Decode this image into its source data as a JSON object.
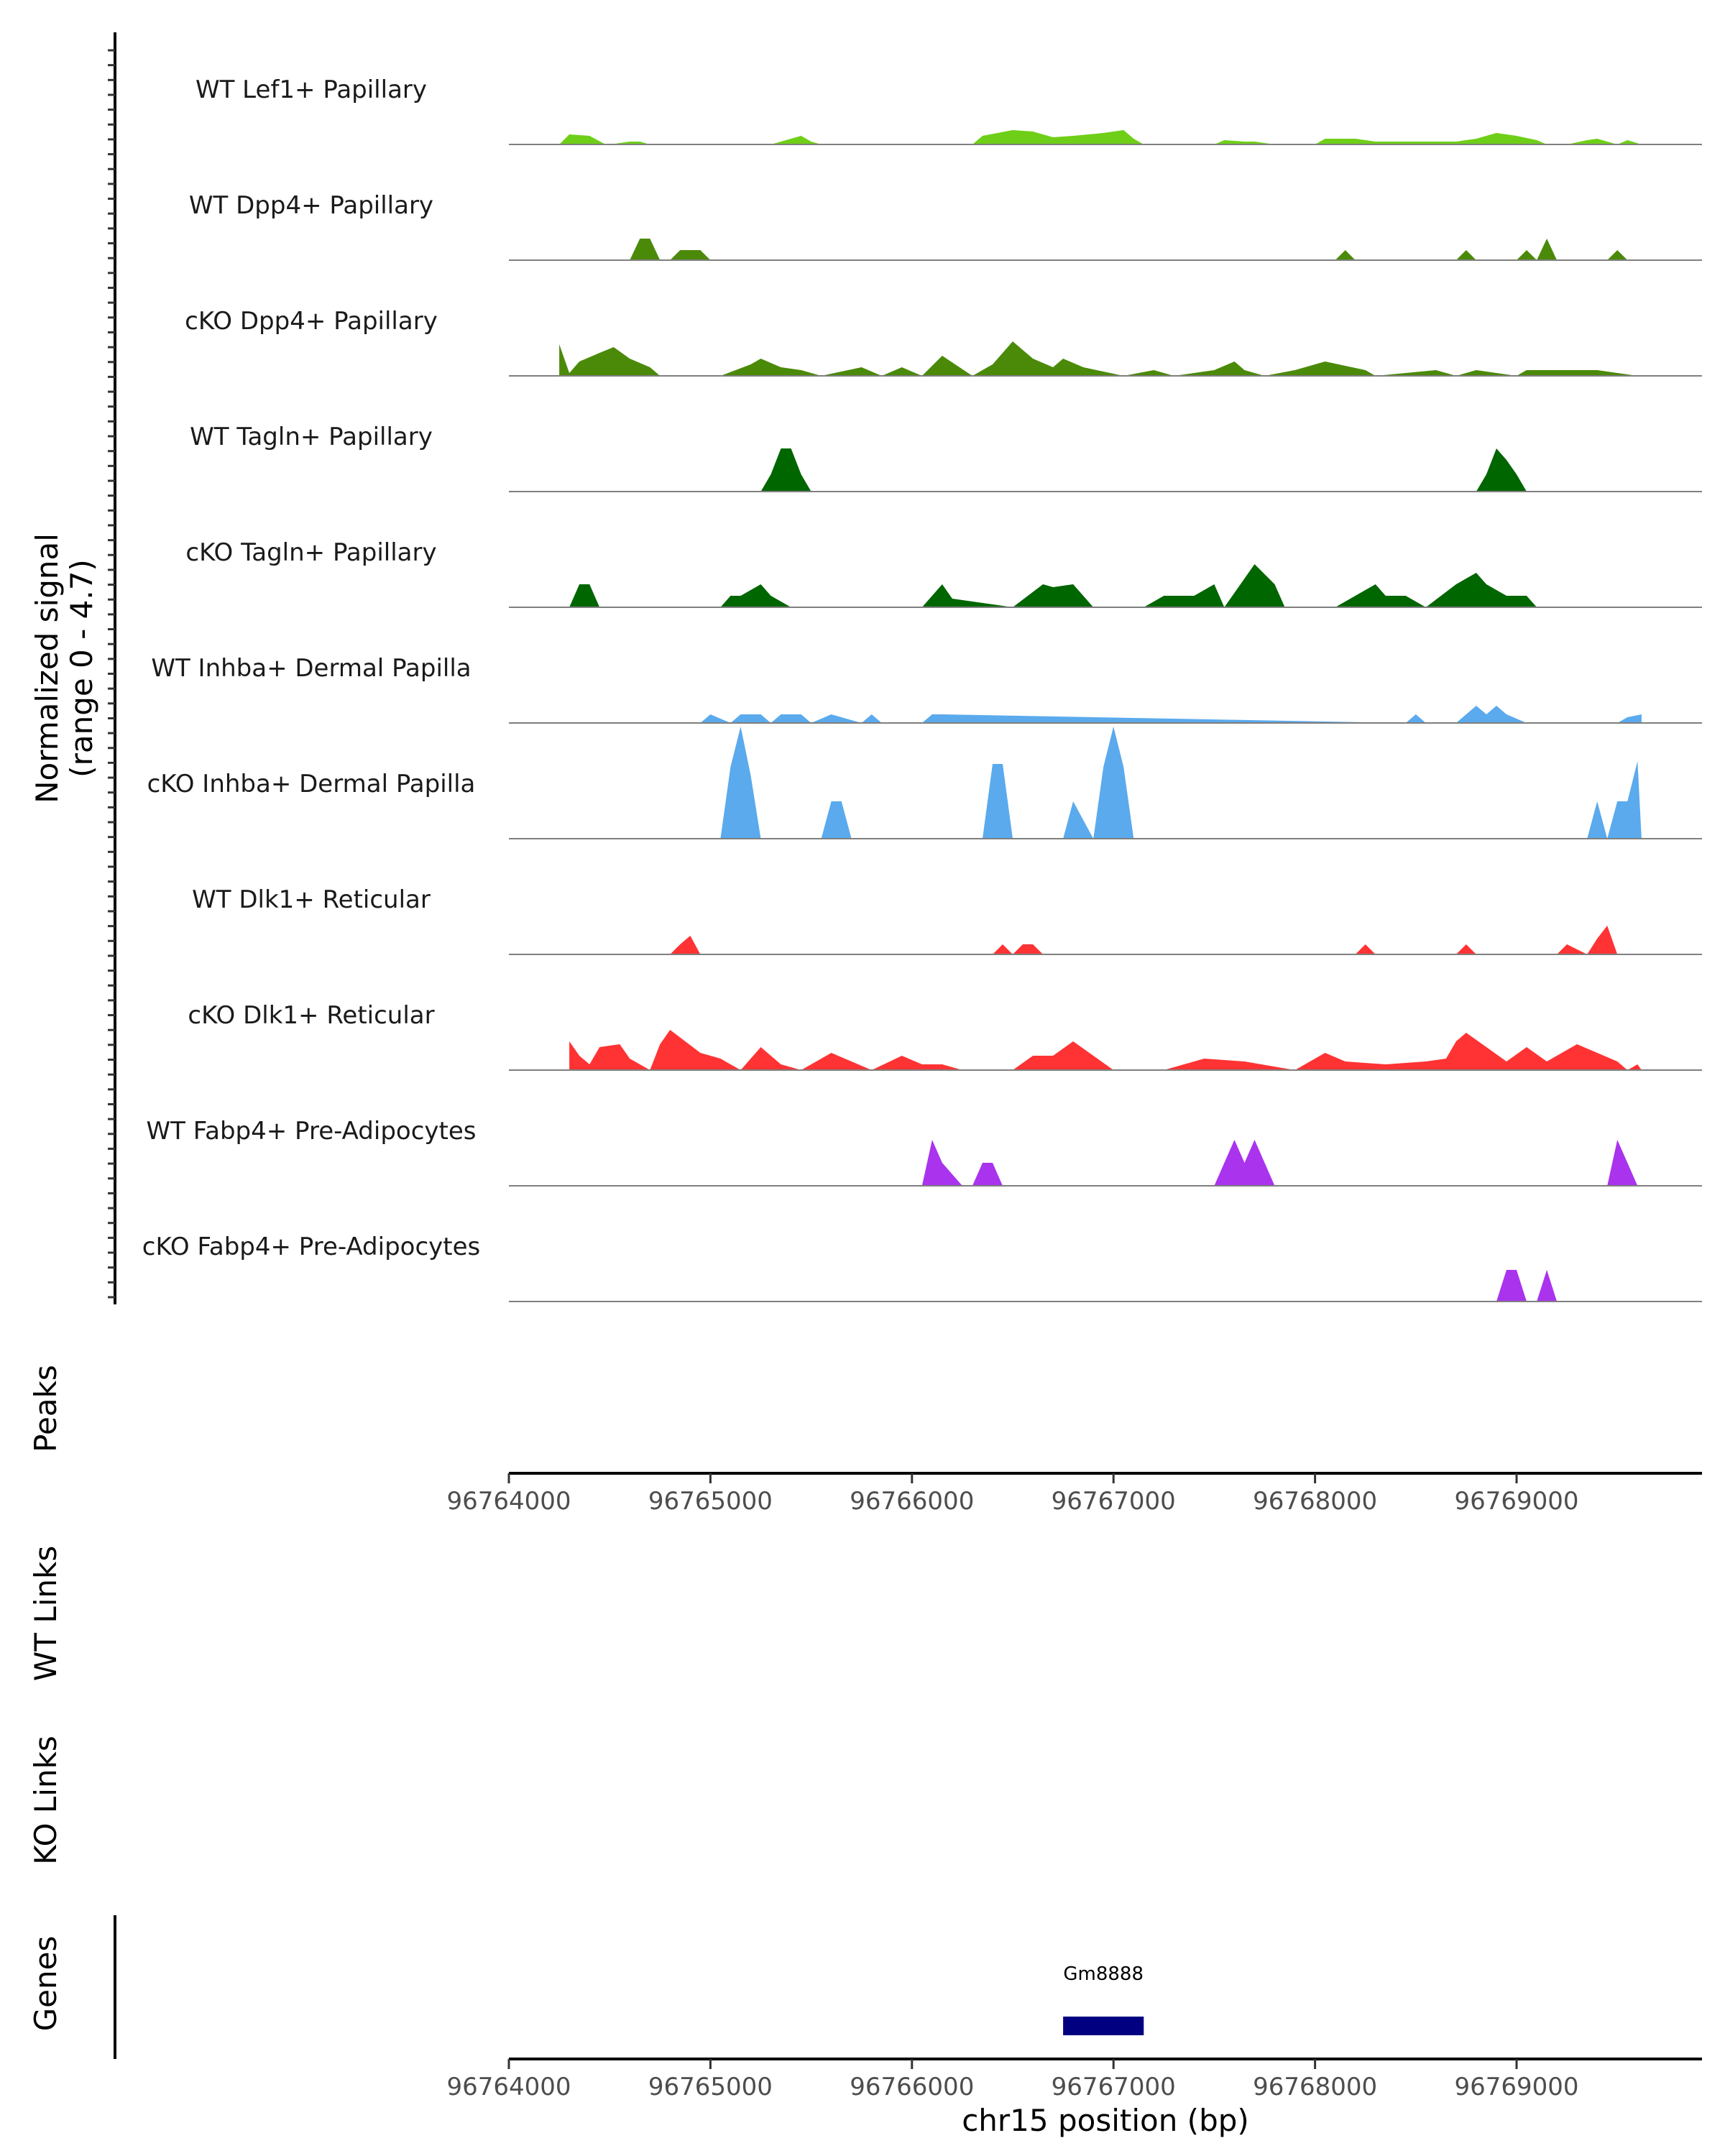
{
  "chart_data": {
    "type": "area",
    "title": "",
    "chromosome": "chr15",
    "xlabel": "chr15 position (bp)",
    "xlim": [
      96764000,
      96769920
    ],
    "xticks": [
      96764000,
      96765000,
      96766000,
      96767000,
      96768000,
      96769000
    ],
    "signal_axis_label": "Normalized signal",
    "signal_axis_range_label": "(range 0 - 4.7)",
    "ylim": [
      0,
      4.7
    ],
    "tracks": [
      {
        "name": "WT Lef1+ Papillary",
        "color": "#6FCF18",
        "x": [
          96764250,
          96764300,
          96764400,
          96764480,
          96764500,
          96764600,
          96764650,
          96764700,
          96764800,
          96765300,
          96765350,
          96765450,
          96765500,
          96765550,
          96765600,
          96766300,
          96766350,
          96766500,
          96766600,
          96766700,
          96766800,
          96766950,
          96767050,
          96767100,
          96767150,
          96767500,
          96767550,
          96767650,
          96767700,
          96767800,
          96768000,
          96768050,
          96768200,
          96768300,
          96768500,
          96768600,
          96768700,
          96768800,
          96768900,
          96769000,
          96769100,
          96769150,
          96769250,
          96769350,
          96769400,
          96769500,
          96769550,
          96769620
        ],
        "y": [
          0,
          0.35,
          0.3,
          0,
          0,
          0.1,
          0.1,
          0,
          0,
          0,
          0.1,
          0.3,
          0.1,
          0,
          0,
          0,
          0.3,
          0.5,
          0.45,
          0.25,
          0.3,
          0.4,
          0.5,
          0.2,
          0,
          0,
          0.15,
          0.1,
          0.1,
          0,
          0,
          0.2,
          0.2,
          0.1,
          0.1,
          0.1,
          0.1,
          0.2,
          0.4,
          0.3,
          0.15,
          0,
          0,
          0.15,
          0.2,
          0,
          0.15,
          0
        ]
      },
      {
        "name": "WT Dpp4+ Papillary",
        "color": "#4B8A09",
        "x": [
          96764600,
          96764650,
          96764700,
          96764750,
          96764800,
          96764850,
          96764950,
          96765000,
          96768100,
          96768150,
          96768200,
          96768700,
          96768750,
          96768800,
          96769000,
          96769050,
          96769100,
          96769150,
          96769200,
          96769450,
          96769500,
          96769550
        ],
        "y": [
          0,
          0.75,
          0.75,
          0,
          0,
          0.35,
          0.35,
          0,
          0,
          0.35,
          0,
          0,
          0.35,
          0,
          0,
          0.35,
          0,
          0.75,
          0,
          0,
          0.35,
          0
        ],
        "connect": false
      },
      {
        "name": "cKO Dpp4+ Papillary",
        "color": "#4B8A09",
        "x": [
          96764250,
          96764300,
          96764350,
          96764450,
          96764520,
          96764600,
          96764700,
          96764750,
          96765050,
          96765200,
          96765250,
          96765350,
          96765450,
          96765550,
          96765750,
          96765850,
          96765950,
          96766050,
          96766150,
          96766300,
          96766400,
          96766500,
          96766600,
          96766700,
          96766750,
          96766850,
          96767050,
          96767200,
          96767300,
          96767500,
          96767600,
          96767650,
          96767750,
          96767900,
          96768050,
          96768250,
          96768300,
          96768450,
          96768600,
          96768700,
          96768800,
          96769000,
          96769050,
          96769100,
          96769300,
          96769400,
          96769500,
          96769600
        ],
        "y": [
          1.1,
          0.1,
          0.5,
          0.8,
          1.0,
          0.6,
          0.3,
          0,
          0,
          0.4,
          0.6,
          0.3,
          0.2,
          0,
          0.3,
          0,
          0.3,
          0,
          0.7,
          0,
          0.4,
          1.2,
          0.6,
          0.3,
          0.6,
          0.3,
          0,
          0.2,
          0,
          0.2,
          0.5,
          0.2,
          0,
          0.2,
          0.5,
          0.2,
          0,
          0.1,
          0.2,
          0,
          0.2,
          0,
          0.2,
          0.2,
          0.2,
          0.2,
          0.1,
          0
        ]
      },
      {
        "name": "WT Tagln+ Papillary",
        "color": "#006600",
        "x": [
          96765250,
          96765300,
          96765350,
          96765400,
          96765450,
          96765500,
          96765800,
          96768800,
          96768850,
          96768900,
          96768950,
          96769000,
          96769050
        ],
        "y": [
          0,
          0.6,
          1.5,
          1.5,
          0.6,
          0,
          0,
          0,
          0.6,
          1.5,
          1.1,
          0.6,
          0
        ]
      },
      {
        "name": "cKO Tagln+ Papillary",
        "color": "#006600",
        "x": [
          96764300,
          96764350,
          96764400,
          96764450,
          96765050,
          96765100,
          96765150,
          96765250,
          96765300,
          96765400,
          96766050,
          96766150,
          96766200,
          96766500,
          96766650,
          96766700,
          96766800,
          96766900,
          96767150,
          96767250,
          96767400,
          96767500,
          96767550,
          96767700,
          96767800,
          96767850,
          96768100,
          96768300,
          96768350,
          96768450,
          96768550,
          96768700,
          96768800,
          96768850,
          96768950,
          96769050,
          96769100
        ],
        "y": [
          0,
          0.8,
          0.8,
          0,
          0,
          0.4,
          0.4,
          0.8,
          0.4,
          0,
          0,
          0.8,
          0.3,
          0,
          0.8,
          0.7,
          0.8,
          0,
          0,
          0.4,
          0.4,
          0.8,
          0,
          1.5,
          0.8,
          0,
          0,
          0.8,
          0.4,
          0.4,
          0,
          0.8,
          1.2,
          0.8,
          0.4,
          0.4,
          0
        ]
      },
      {
        "name": "WT Inhba+ Dermal Papilla",
        "color": "#5AAAED",
        "x": [
          96764950,
          96765000,
          96765100,
          96765150,
          96765250,
          96765300,
          96765350,
          96765450,
          96765500,
          96765600,
          96765750,
          96765800,
          96765850,
          96766050,
          96766100,
          96766150,
          96768450,
          96768500,
          96768550,
          96768700,
          96768750,
          96768800,
          96768850,
          96768900,
          96768950,
          96769050,
          96769500,
          96769550,
          96769620
        ],
        "y": [
          0,
          0.3,
          0,
          0.3,
          0.3,
          0,
          0.3,
          0.3,
          0,
          0.3,
          0,
          0.3,
          0,
          0,
          0.3,
          0.3,
          0,
          0.3,
          0,
          0,
          0.3,
          0.6,
          0.3,
          0.6,
          0.3,
          0,
          0,
          0.2,
          0.3
        ]
      },
      {
        "name": "cKO Inhba+ Dermal Papilla",
        "color": "#5AAAED",
        "x": [
          96765050,
          96765100,
          96765150,
          96765200,
          96765250,
          96765550,
          96765600,
          96765650,
          96765700,
          96766350,
          96766400,
          96766450,
          96766500,
          96766750,
          96766800,
          96766900,
          96766950,
          96767000,
          96767050,
          96767100,
          96769350,
          96769400,
          96769450,
          96769500,
          96769550,
          96769600,
          96769620
        ],
        "y": [
          0,
          2.5,
          3.9,
          2.2,
          0,
          0,
          1.3,
          1.3,
          0,
          0,
          2.6,
          2.6,
          0,
          0,
          1.3,
          0,
          2.5,
          3.9,
          2.5,
          0,
          0,
          1.3,
          0,
          1.3,
          1.3,
          2.7,
          0
        ]
      },
      {
        "name": "WT Dlk1+ Reticular",
        "color": "#FF3333",
        "x": [
          96764800,
          96764850,
          96764900,
          96764950,
          96766400,
          96766450,
          96766500,
          96766550,
          96766600,
          96766650,
          96768200,
          96768250,
          96768300,
          96768700,
          96768750,
          96768800,
          96769200,
          96769250,
          96769350,
          96769400,
          96769450,
          96769500
        ],
        "y": [
          0,
          0.35,
          0.65,
          0,
          0,
          0.35,
          0,
          0.35,
          0.35,
          0,
          0,
          0.35,
          0,
          0,
          0.35,
          0,
          0,
          0.35,
          0,
          0.55,
          1.0,
          0
        ]
      },
      {
        "name": "cKO Dlk1+ Reticular",
        "color": "#FF3333",
        "x": [
          96764300,
          96764350,
          96764400,
          96764450,
          96764550,
          96764600,
          96764700,
          96764750,
          96764800,
          96764950,
          96765050,
          96765150,
          96765250,
          96765350,
          96765450,
          96765600,
          96765700,
          96765800,
          96765950,
          96766050,
          96766150,
          96766250,
          96766500,
          96766600,
          96766700,
          96766800,
          96766900,
          96767000,
          96767250,
          96767450,
          96767650,
          96767900,
          96768050,
          96768150,
          96768350,
          96768550,
          96768650,
          96768700,
          96768750,
          96768850,
          96768950,
          96769050,
          96769150,
          96769300,
          96769400,
          96769500,
          96769550,
          96769600,
          96769620
        ],
        "y": [
          1.0,
          0.5,
          0.2,
          0.8,
          0.9,
          0.4,
          0,
          0.9,
          1.4,
          0.6,
          0.4,
          0,
          0.8,
          0.2,
          0,
          0.6,
          0.3,
          0,
          0.5,
          0.2,
          0.2,
          0,
          0,
          0.5,
          0.5,
          1.0,
          0.5,
          0,
          0,
          0.4,
          0.3,
          0,
          0.6,
          0.3,
          0.2,
          0.3,
          0.4,
          1.0,
          1.3,
          0.8,
          0.3,
          0.8,
          0.3,
          0.9,
          0.6,
          0.3,
          0,
          0.2,
          0
        ]
      },
      {
        "name": "WT Fabp4+ Pre-Adipocytes",
        "color": "#AA33EE",
        "x": [
          96766050,
          96766100,
          96766150,
          96766250,
          96766300,
          96766350,
          96766400,
          96766450,
          96767500,
          96767550,
          96767600,
          96767650,
          96767700,
          96767750,
          96767800,
          96769450,
          96769500,
          96769550,
          96769600
        ],
        "y": [
          0,
          1.6,
          0.8,
          0,
          0,
          0.8,
          0.8,
          0,
          0,
          0.8,
          1.6,
          0.8,
          1.6,
          0.8,
          0,
          0,
          1.6,
          0.8,
          0
        ]
      },
      {
        "name": "cKO Fabp4+ Pre-Adipocytes",
        "color": "#AA33EE",
        "x": [
          96768900,
          96768950,
          96769000,
          96769050,
          96769100,
          96769150,
          96769200
        ],
        "y": [
          0,
          1.1,
          1.1,
          0,
          0,
          1.1,
          0
        ]
      }
    ],
    "sections": [
      "Peaks",
      "WT Links",
      "KO Links",
      "Genes"
    ],
    "genes": [
      {
        "name": "Gm8888",
        "start": 96766750,
        "end": 96767150,
        "color": "#000080"
      }
    ]
  }
}
